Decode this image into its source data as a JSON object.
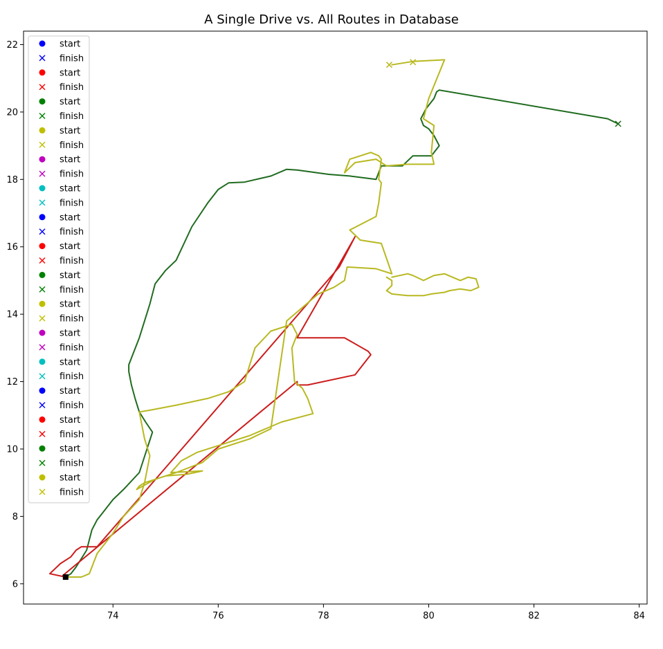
{
  "chart_data": {
    "type": "line",
    "title": "A Single Drive vs. All Routes in Database",
    "xlabel": "",
    "ylabel": "",
    "xlim": [
      72.3,
      84.15
    ],
    "ylim": [
      5.4,
      22.4
    ],
    "xticks": [
      74,
      76,
      78,
      80,
      82,
      84
    ],
    "yticks": [
      6,
      8,
      10,
      12,
      14,
      16,
      18,
      20,
      22
    ],
    "grid": false,
    "legend_placement": "upper-left",
    "legend": [
      {
        "label": "start",
        "marker": "circle",
        "color": "#0000ff"
      },
      {
        "label": "finish",
        "marker": "x",
        "color": "#0000ff"
      },
      {
        "label": "start",
        "marker": "circle",
        "color": "#ff0000"
      },
      {
        "label": "finish",
        "marker": "x",
        "color": "#ff0000"
      },
      {
        "label": "start",
        "marker": "circle",
        "color": "#008000"
      },
      {
        "label": "finish",
        "marker": "x",
        "color": "#008000"
      },
      {
        "label": "start",
        "marker": "circle",
        "color": "#bfbf00"
      },
      {
        "label": "finish",
        "marker": "x",
        "color": "#bfbf00"
      },
      {
        "label": "start",
        "marker": "circle",
        "color": "#bf00bf"
      },
      {
        "label": "finish",
        "marker": "x",
        "color": "#bf00bf"
      },
      {
        "label": "start",
        "marker": "circle",
        "color": "#00bfbf"
      },
      {
        "label": "finish",
        "marker": "x",
        "color": "#00bfbf"
      },
      {
        "label": "start",
        "marker": "circle",
        "color": "#0000ff"
      },
      {
        "label": "finish",
        "marker": "x",
        "color": "#0000ff"
      },
      {
        "label": "start",
        "marker": "circle",
        "color": "#ff0000"
      },
      {
        "label": "finish",
        "marker": "x",
        "color": "#ff0000"
      },
      {
        "label": "start",
        "marker": "circle",
        "color": "#008000"
      },
      {
        "label": "finish",
        "marker": "x",
        "color": "#008000"
      },
      {
        "label": "start",
        "marker": "circle",
        "color": "#bfbf00"
      },
      {
        "label": "finish",
        "marker": "x",
        "color": "#bfbf00"
      },
      {
        "label": "start",
        "marker": "circle",
        "color": "#bf00bf"
      },
      {
        "label": "finish",
        "marker": "x",
        "color": "#bf00bf"
      },
      {
        "label": "start",
        "marker": "circle",
        "color": "#00bfbf"
      },
      {
        "label": "finish",
        "marker": "x",
        "color": "#00bfbf"
      },
      {
        "label": "start",
        "marker": "circle",
        "color": "#0000ff"
      },
      {
        "label": "finish",
        "marker": "x",
        "color": "#0000ff"
      },
      {
        "label": "start",
        "marker": "circle",
        "color": "#ff0000"
      },
      {
        "label": "finish",
        "marker": "x",
        "color": "#ff0000"
      },
      {
        "label": "start",
        "marker": "circle",
        "color": "#008000"
      },
      {
        "label": "finish",
        "marker": "x",
        "color": "#008000"
      },
      {
        "label": "start",
        "marker": "circle",
        "color": "#bfbf00"
      },
      {
        "label": "finish",
        "marker": "x",
        "color": "#bfbf00"
      }
    ],
    "series": [
      {
        "color": "#1f6b1f",
        "x": [
          73.1,
          73.2,
          73.3,
          73.5,
          73.6,
          73.7,
          73.8,
          74.0,
          74.2,
          74.5,
          74.75,
          74.62,
          74.5,
          74.42,
          74.35,
          74.3,
          74.3,
          74.5,
          74.7,
          74.8,
          75.0,
          75.2,
          75.5,
          75.8,
          76.0,
          76.2,
          76.5,
          77.0,
          77.3,
          77.5,
          78.1,
          78.5,
          79.0,
          79.1,
          79.2,
          79.5,
          79.7,
          80.05,
          80.2,
          80.1,
          80.0,
          79.9,
          79.85,
          79.95,
          80.1,
          80.15,
          80.2,
          83.4,
          83.6
        ],
        "y": [
          6.2,
          6.3,
          6.5,
          7.0,
          7.6,
          7.9,
          8.1,
          8.5,
          8.8,
          9.3,
          10.5,
          10.8,
          11.1,
          11.5,
          11.9,
          12.3,
          12.5,
          13.3,
          14.3,
          14.9,
          15.3,
          15.6,
          16.6,
          17.3,
          17.7,
          17.9,
          17.92,
          18.1,
          18.3,
          18.28,
          18.15,
          18.1,
          18.0,
          18.4,
          18.4,
          18.4,
          18.7,
          18.7,
          19.0,
          19.3,
          19.5,
          19.6,
          19.8,
          20.1,
          20.4,
          20.6,
          20.65,
          19.8,
          19.65
        ]
      },
      {
        "color": "#cc1c1c",
        "x": [
          73.1,
          72.8,
          73.0,
          73.2,
          73.3,
          73.4,
          73.7,
          78.3,
          78.6,
          77.5,
          77.6,
          78.4,
          78.85,
          78.9,
          78.6,
          77.7,
          77.5,
          77.5,
          73.05,
          73.1
        ],
        "y": [
          6.2,
          6.3,
          6.6,
          6.8,
          7.0,
          7.1,
          7.1,
          15.4,
          16.3,
          13.3,
          13.3,
          13.3,
          12.9,
          12.8,
          12.2,
          11.9,
          11.9,
          12.0,
          6.25,
          6.2
        ]
      },
      {
        "color": "#b8b820",
        "x": [
          73.1,
          73.4,
          73.55,
          73.7,
          74.0,
          74.2,
          74.5,
          74.6,
          74.7,
          74.6,
          74.5,
          74.7,
          75.2,
          75.8,
          76.2,
          76.5,
          76.6,
          76.7,
          77.0,
          77.4,
          77.5,
          77.4,
          77.45,
          77.6,
          77.7,
          77.8,
          77.2,
          76.6,
          76.0,
          75.6,
          75.3,
          75.1,
          75.7,
          75.4,
          75.0,
          74.6,
          74.5,
          74.45,
          74.8,
          75.2,
          75.7,
          76.0,
          76.6,
          77.0,
          77.3,
          77.6,
          77.9,
          78.2,
          78.4,
          78.45,
          79.0,
          79.3,
          79.1,
          78.7,
          78.5,
          79.0,
          79.05,
          79.1,
          79.05,
          79.1,
          79.05,
          78.9,
          78.5,
          78.4,
          78.6,
          79.0,
          79.2,
          79.6,
          80.1,
          80.05,
          80.1,
          79.9,
          80.0,
          80.3,
          79.7,
          79.3
        ],
        "y": [
          6.2,
          6.2,
          6.3,
          6.9,
          7.5,
          8.0,
          8.5,
          9.0,
          9.8,
          10.3,
          11.1,
          11.15,
          11.3,
          11.5,
          11.7,
          12.0,
          12.5,
          13.0,
          13.5,
          13.7,
          13.4,
          13.0,
          12.0,
          11.8,
          11.5,
          11.05,
          10.8,
          10.4,
          10.1,
          9.9,
          9.65,
          9.3,
          9.35,
          9.25,
          9.2,
          9.0,
          8.9,
          8.8,
          9.1,
          9.3,
          9.6,
          10.0,
          10.3,
          10.6,
          13.8,
          14.2,
          14.6,
          14.8,
          15.0,
          15.4,
          15.35,
          15.2,
          16.1,
          16.2,
          16.5,
          16.9,
          17.3,
          17.9,
          18.0,
          18.6,
          18.7,
          18.8,
          18.6,
          18.2,
          18.5,
          18.6,
          18.4,
          18.45,
          18.45,
          18.8,
          19.6,
          19.8,
          20.4,
          21.55,
          21.5,
          21.4
        ]
      },
      {
        "color": "#b8b820",
        "x": [
          79.3,
          79.6,
          79.7,
          79.9,
          80.1,
          80.3,
          80.6,
          80.75,
          80.9,
          80.95,
          80.8,
          80.6,
          80.4,
          80.3,
          80.05,
          79.9,
          79.6,
          79.3,
          79.2,
          79.3,
          79.3,
          79.2
        ],
        "y": [
          15.1,
          15.2,
          15.15,
          15.0,
          15.15,
          15.2,
          15.0,
          15.1,
          15.05,
          14.8,
          14.7,
          14.75,
          14.7,
          14.65,
          14.6,
          14.55,
          14.55,
          14.6,
          14.7,
          14.85,
          15.0,
          15.1
        ]
      }
    ],
    "points": [
      {
        "x": 73.1,
        "y": 6.2,
        "marker": "square",
        "color": "#000000"
      },
      {
        "x": 83.6,
        "y": 19.65,
        "marker": "x",
        "color": "#1f6b1f"
      },
      {
        "x": 79.25,
        "y": 21.4,
        "marker": "x",
        "color": "#b8b820"
      },
      {
        "x": 79.7,
        "y": 21.48,
        "marker": "x",
        "color": "#b8b820"
      }
    ]
  }
}
